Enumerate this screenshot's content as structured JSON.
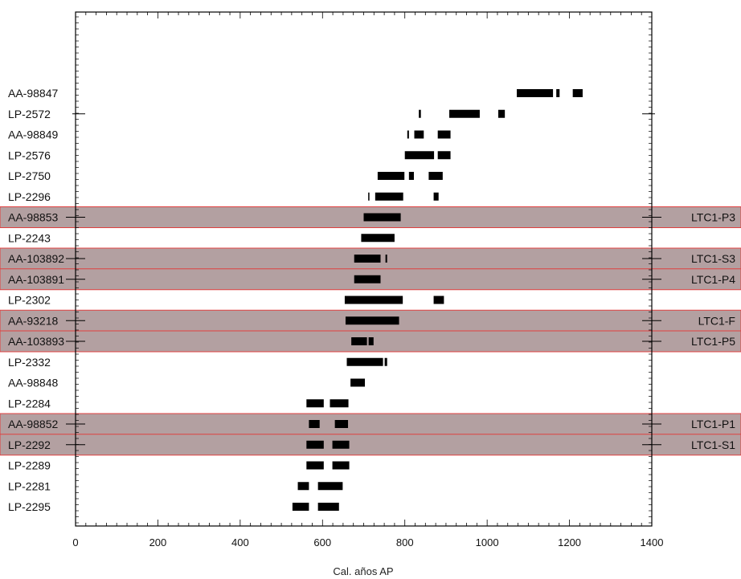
{
  "colors": {
    "band_fill": "#b3a0a1",
    "band_stroke": "#e04040",
    "bar": "#000000",
    "axis": "#000000"
  },
  "chart_data": {
    "type": "range-bar",
    "xlabel": "Cal. años AP",
    "xlim": [
      0,
      1400
    ],
    "x_ticks": [
      "0",
      "200",
      "400",
      "600",
      "800",
      "1000",
      "1200",
      "1400"
    ],
    "grid": false,
    "rows": [
      {
        "label": "AA-98847",
        "ranges": [
          [
            1072,
            1160
          ],
          [
            1168,
            1176
          ],
          [
            1208,
            1232
          ]
        ]
      },
      {
        "label": "LP-2572",
        "ranges": [
          [
            834,
            839
          ],
          [
            908,
            982
          ],
          [
            1027,
            1043
          ]
        ]
      },
      {
        "label": "AA-98849",
        "ranges": [
          [
            806,
            810
          ],
          [
            823,
            846
          ],
          [
            880,
            911
          ]
        ]
      },
      {
        "label": "LP-2576",
        "ranges": [
          [
            800,
            871
          ],
          [
            880,
            911
          ]
        ]
      },
      {
        "label": "LP-2750",
        "ranges": [
          [
            734,
            799
          ],
          [
            810,
            822
          ],
          [
            858,
            892
          ]
        ]
      },
      {
        "label": "LP-2296",
        "ranges": [
          [
            711,
            714
          ],
          [
            728,
            796
          ],
          [
            870,
            882
          ]
        ]
      },
      {
        "label": "AA-98853",
        "ranges": [
          [
            700,
            790
          ]
        ],
        "highlight": "LTC1-P3"
      },
      {
        "label": "LP-2243",
        "ranges": [
          [
            694,
            775
          ]
        ]
      },
      {
        "label": "AA-103892",
        "ranges": [
          [
            677,
            741
          ],
          [
            753,
            757
          ]
        ],
        "highlight": "LTC1-S3"
      },
      {
        "label": "AA-103891",
        "ranges": [
          [
            677,
            741
          ]
        ],
        "highlight": "LTC1-P4"
      },
      {
        "label": "LP-2302",
        "ranges": [
          [
            654,
            795
          ],
          [
            870,
            895
          ]
        ]
      },
      {
        "label": "AA-93218",
        "ranges": [
          [
            656,
            786
          ]
        ],
        "highlight": "LTC1-F"
      },
      {
        "label": "AA-103893",
        "ranges": [
          [
            670,
            708
          ],
          [
            712,
            724
          ]
        ],
        "highlight": "LTC1-P5"
      },
      {
        "label": "LP-2332",
        "ranges": [
          [
            659,
            747
          ],
          [
            751,
            757
          ]
        ]
      },
      {
        "label": "AA-98848",
        "ranges": [
          [
            668,
            703
          ]
        ]
      },
      {
        "label": "LP-2284",
        "ranges": [
          [
            561,
            603
          ],
          [
            618,
            663
          ]
        ]
      },
      {
        "label": "AA-98852",
        "ranges": [
          [
            567,
            593
          ],
          [
            630,
            662
          ]
        ],
        "highlight": "LTC1-P1"
      },
      {
        "label": "LP-2292",
        "ranges": [
          [
            561,
            603
          ],
          [
            624,
            665
          ]
        ],
        "highlight": "LTC1-S1"
      },
      {
        "label": "LP-2289",
        "ranges": [
          [
            561,
            603
          ],
          [
            624,
            665
          ]
        ]
      },
      {
        "label": "LP-2281",
        "ranges": [
          [
            540,
            567
          ],
          [
            589,
            649
          ]
        ]
      },
      {
        "label": "LP-2295",
        "ranges": [
          [
            527,
            567
          ],
          [
            589,
            640
          ]
        ]
      }
    ]
  }
}
